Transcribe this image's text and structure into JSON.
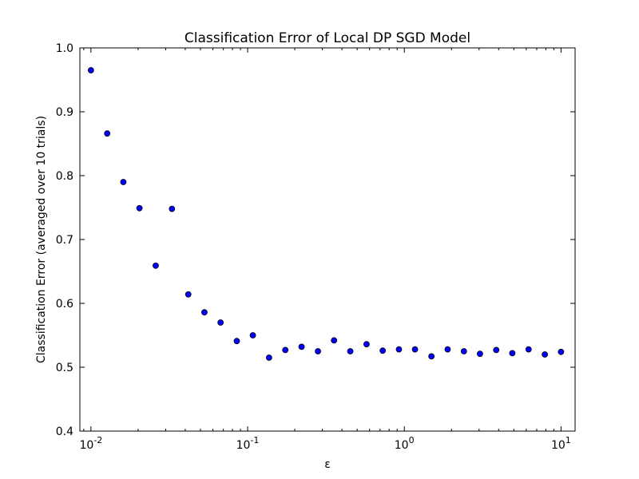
{
  "chart_data": {
    "type": "scatter",
    "title": "Classification Error of Local DP SGD Model",
    "xlabel": "ε",
    "ylabel": "Classification Error (averaged over 10 trials)",
    "x_scale": "log",
    "xlim": [
      0.0085,
      12.3
    ],
    "ylim": [
      0.4,
      1.0
    ],
    "x_ticks": [
      {
        "base": "10",
        "exp": "-2",
        "value": 0.01
      },
      {
        "base": "10",
        "exp": "-1",
        "value": 0.1
      },
      {
        "base": "10",
        "exp": "0",
        "value": 1
      },
      {
        "base": "10",
        "exp": "1",
        "value": 10
      }
    ],
    "y_ticks": [
      {
        "label": "0.4",
        "value": 0.4
      },
      {
        "label": "0.5",
        "value": 0.5
      },
      {
        "label": "0.6",
        "value": 0.6
      },
      {
        "label": "0.7",
        "value": 0.7
      },
      {
        "label": "0.8",
        "value": 0.8
      },
      {
        "label": "0.9",
        "value": 0.9
      },
      {
        "label": "1.0",
        "value": 1.0
      }
    ],
    "grid": false,
    "marker_color": "#0000ff",
    "marker_edge_color": "#000000",
    "points": [
      {
        "x": 0.01,
        "y": 0.965
      },
      {
        "x": 0.0127,
        "y": 0.866
      },
      {
        "x": 0.0161,
        "y": 0.79
      },
      {
        "x": 0.0204,
        "y": 0.749
      },
      {
        "x": 0.0259,
        "y": 0.659
      },
      {
        "x": 0.0329,
        "y": 0.748
      },
      {
        "x": 0.0418,
        "y": 0.614
      },
      {
        "x": 0.053,
        "y": 0.586
      },
      {
        "x": 0.0672,
        "y": 0.57
      },
      {
        "x": 0.0853,
        "y": 0.541
      },
      {
        "x": 0.108,
        "y": 0.55
      },
      {
        "x": 0.137,
        "y": 0.515
      },
      {
        "x": 0.174,
        "y": 0.527
      },
      {
        "x": 0.221,
        "y": 0.532
      },
      {
        "x": 0.281,
        "y": 0.525
      },
      {
        "x": 0.356,
        "y": 0.542
      },
      {
        "x": 0.452,
        "y": 0.525
      },
      {
        "x": 0.574,
        "y": 0.536
      },
      {
        "x": 0.728,
        "y": 0.526
      },
      {
        "x": 0.924,
        "y": 0.528
      },
      {
        "x": 1.17,
        "y": 0.528
      },
      {
        "x": 1.49,
        "y": 0.517
      },
      {
        "x": 1.89,
        "y": 0.528
      },
      {
        "x": 2.4,
        "y": 0.525
      },
      {
        "x": 3.04,
        "y": 0.521
      },
      {
        "x": 3.86,
        "y": 0.527
      },
      {
        "x": 4.89,
        "y": 0.522
      },
      {
        "x": 6.21,
        "y": 0.528
      },
      {
        "x": 7.88,
        "y": 0.52
      },
      {
        "x": 10.0,
        "y": 0.524
      }
    ]
  }
}
